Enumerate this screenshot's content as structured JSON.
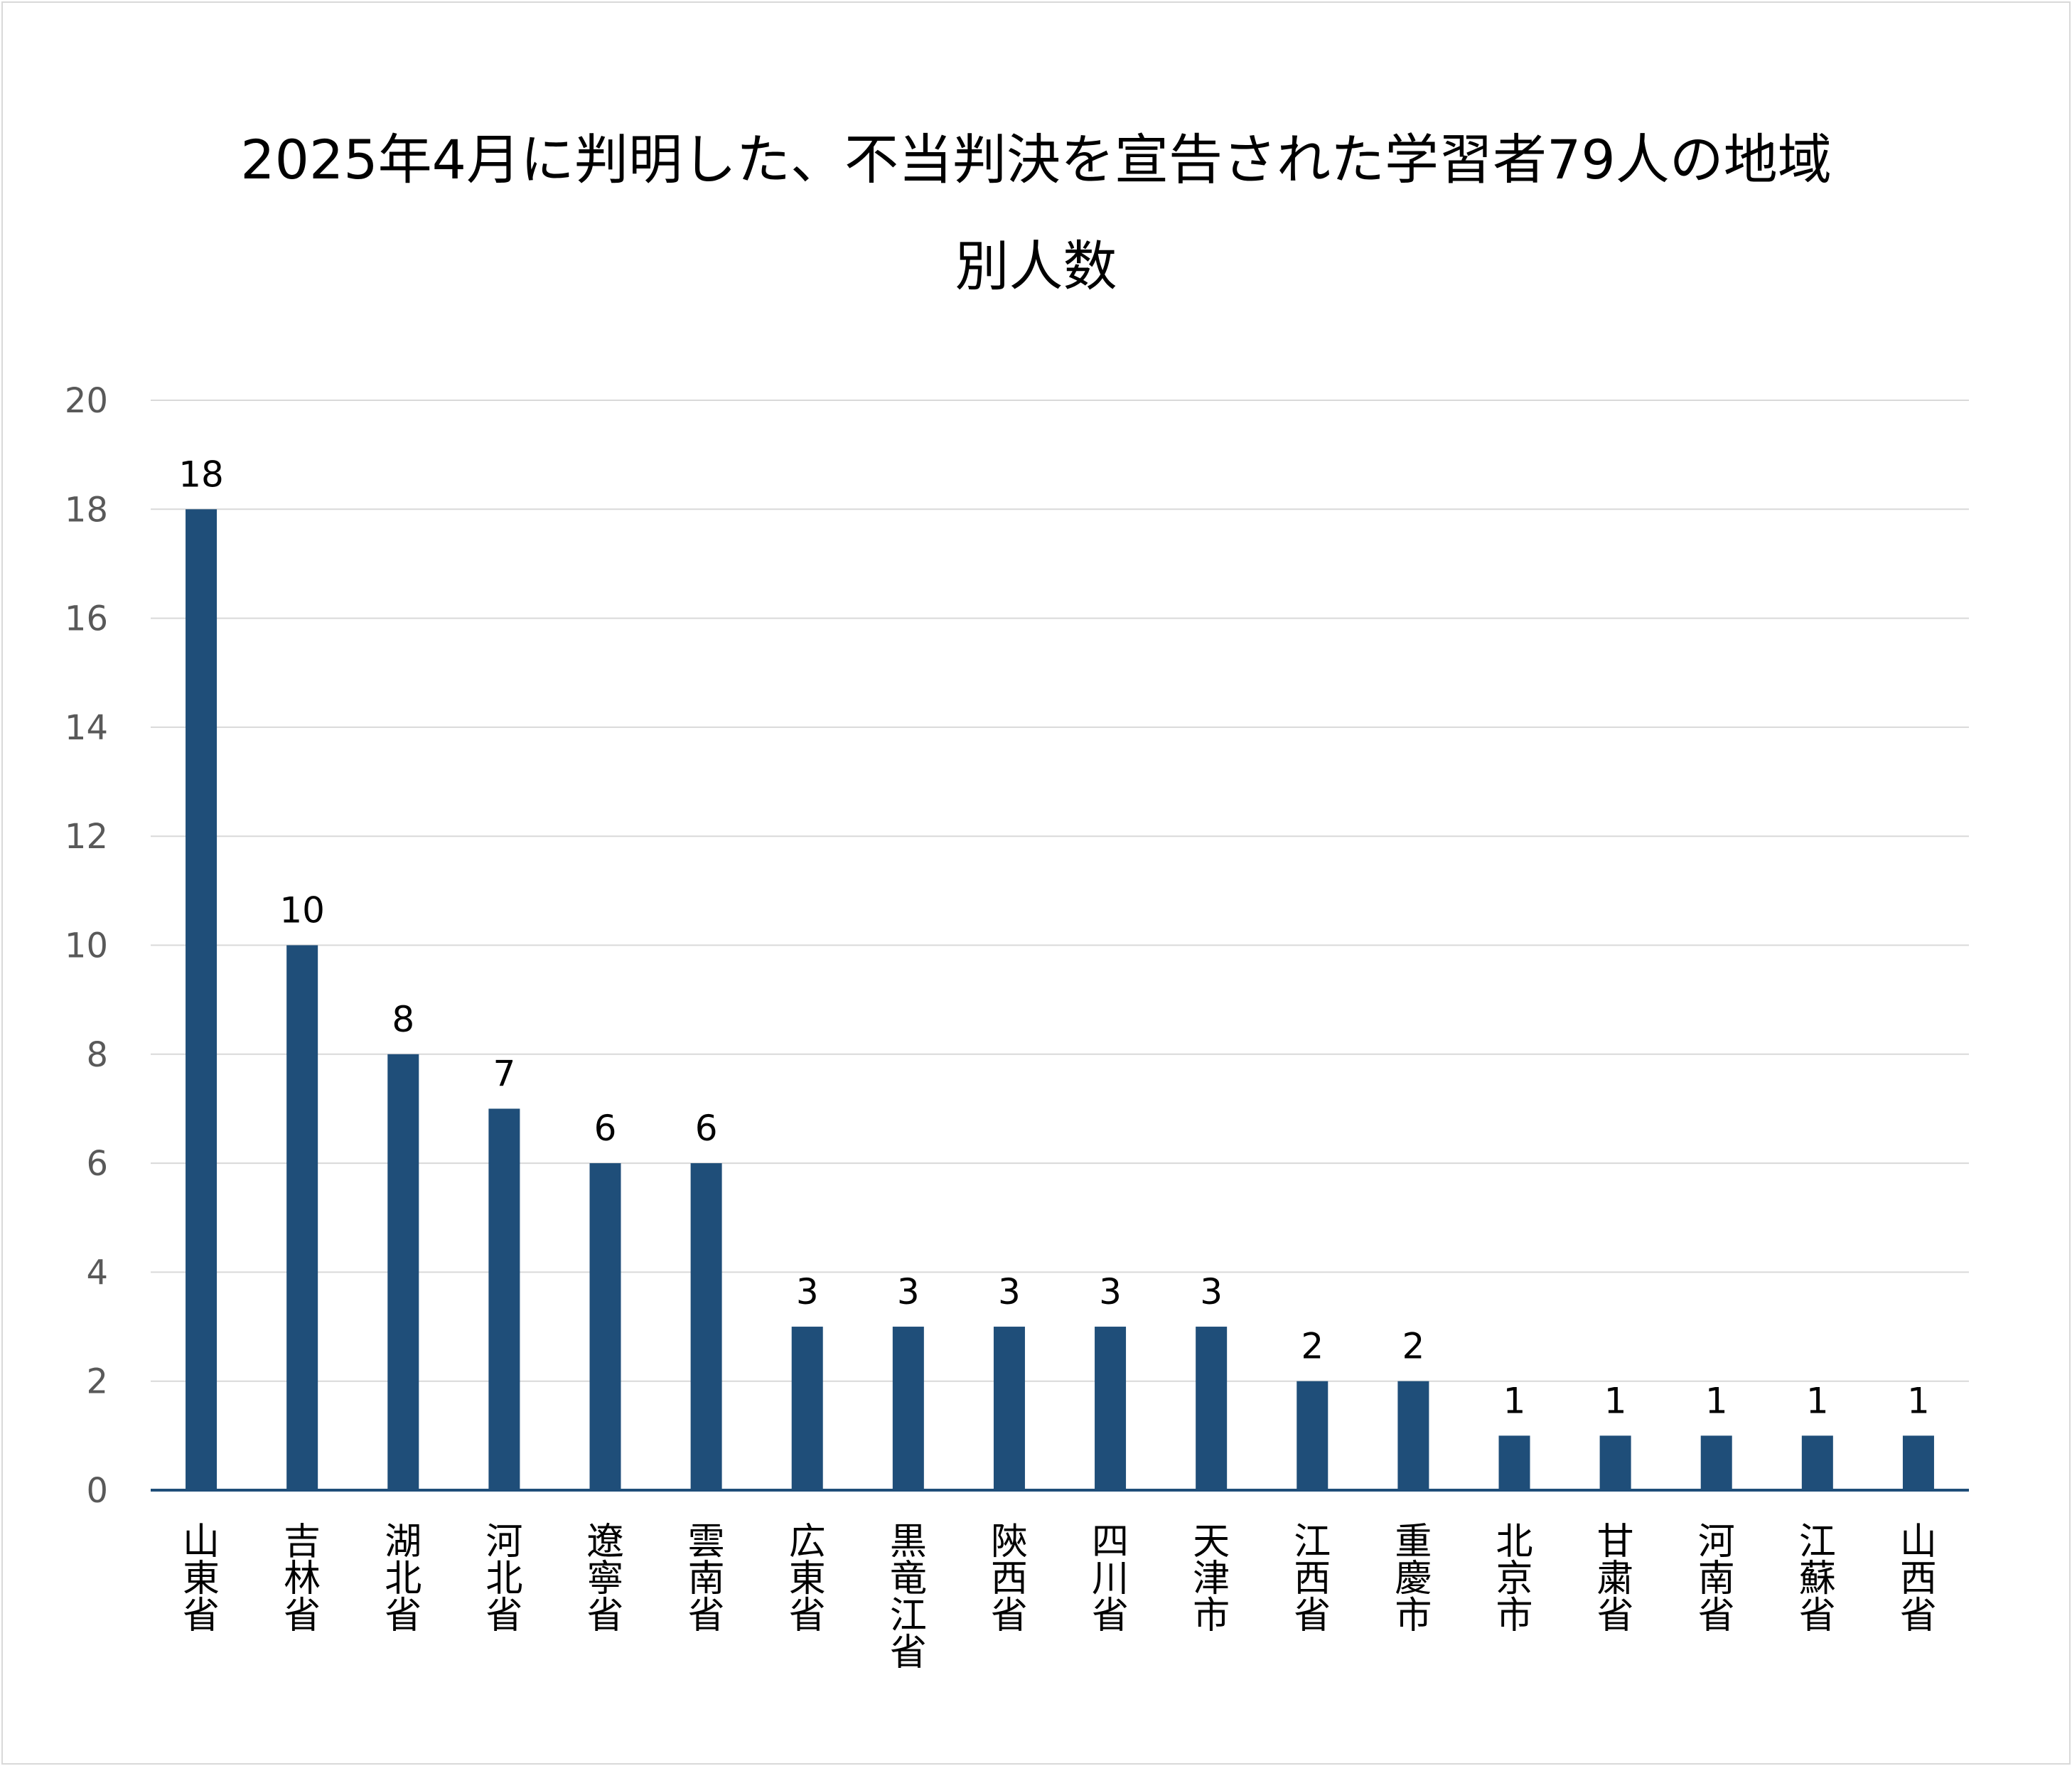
{
  "chart_data": {
    "type": "bar",
    "title_lines": [
      "2025年4月に判明した、不当判決を宣告された学習者79人の地域",
      "別人数"
    ],
    "categories": [
      "山東省",
      "吉林省",
      "湖北省",
      "河北省",
      "遼寧省",
      "雲南省",
      "広東省",
      "黒竜江省",
      "陝西省",
      "四川省",
      "天津市",
      "江西省",
      "重慶市",
      "北京市",
      "甘粛省",
      "河南省",
      "江蘇省",
      "山西省"
    ],
    "values": [
      18,
      10,
      8,
      7,
      6,
      6,
      3,
      3,
      3,
      3,
      3,
      2,
      2,
      1,
      1,
      1,
      1,
      1
    ],
    "ylim": [
      0,
      20
    ],
    "yticks": [
      0,
      2,
      4,
      6,
      8,
      10,
      12,
      14,
      16,
      18,
      20
    ],
    "data_labels": true,
    "grid": true,
    "legend": "none",
    "colors": {
      "bar": "#1f4e79",
      "grid": "#d9d9d9",
      "axis": "#1f4e79"
    }
  }
}
